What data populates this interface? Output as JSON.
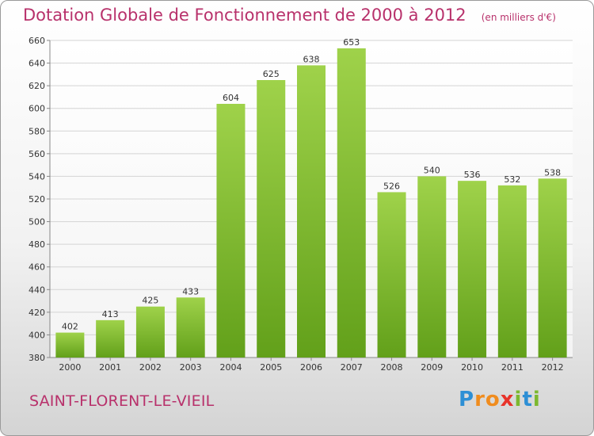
{
  "header": {
    "title": "Dotation Globale de Fonctionnement de 2000 à 2012",
    "unit": "(en milliers d'€)"
  },
  "footer": {
    "city": "SAINT-FLORENT-LE-VIEIL",
    "brand": {
      "text": "Proxiti",
      "letters": [
        {
          "ch": "P",
          "color": "#2d8fd5"
        },
        {
          "ch": "r",
          "color": "#f08c1e"
        },
        {
          "ch": "o",
          "color": "#f08c1e"
        },
        {
          "ch": "x",
          "color": "#e8332a"
        },
        {
          "ch": "i",
          "color": "#7cb82f"
        },
        {
          "ch": "t",
          "color": "#2d8fd5"
        },
        {
          "ch": "i",
          "color": "#7cb82f"
        }
      ]
    }
  },
  "chart_data": {
    "type": "bar",
    "title": "Dotation Globale de Fonctionnement de 2000 à 2012",
    "subtitle": "(en milliers d'€)",
    "categories": [
      "2000",
      "2001",
      "2002",
      "2003",
      "2004",
      "2005",
      "2006",
      "2007",
      "2008",
      "2009",
      "2010",
      "2011",
      "2012"
    ],
    "values": [
      402,
      413,
      425,
      433,
      604,
      625,
      638,
      653,
      526,
      540,
      536,
      532,
      538
    ],
    "ylim": [
      380,
      660
    ],
    "yticks": [
      380,
      400,
      420,
      440,
      460,
      480,
      500,
      520,
      540,
      560,
      580,
      600,
      620,
      640,
      660
    ],
    "grid": true,
    "bar_color_top": "#9fd24a",
    "bar_color_bottom": "#62a01a",
    "grid_color": "#d4d4d4",
    "title_color": "#b8316b"
  }
}
